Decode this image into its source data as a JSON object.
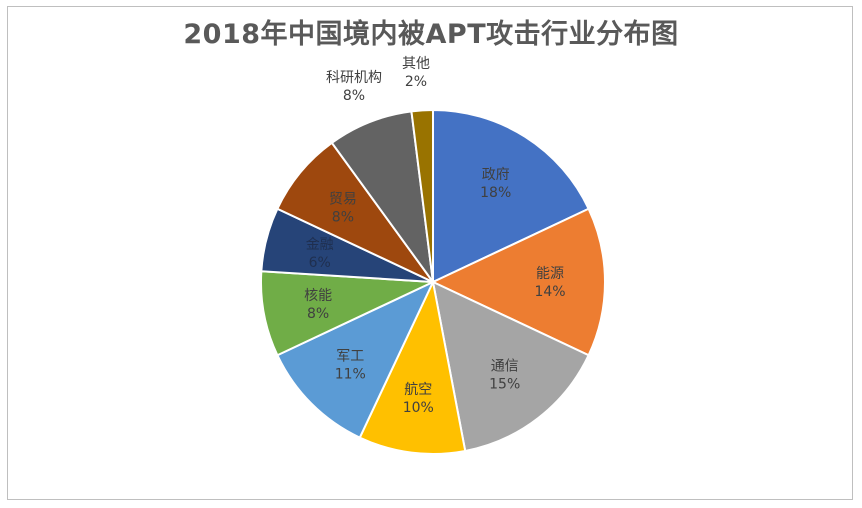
{
  "chart_data": {
    "type": "pie",
    "title": "2018年中国境内被APT攻击行业分布图",
    "start_angle_deg": 0,
    "direction": "clockwise",
    "slices": [
      {
        "label": "政府",
        "value": 18,
        "percent_label": "18%",
        "color": "#4472C4",
        "label_color": "#404040",
        "label_inside": true
      },
      {
        "label": "能源",
        "value": 14,
        "percent_label": "14%",
        "color": "#ED7D31",
        "label_color": "#404040",
        "label_inside": true
      },
      {
        "label": "通信",
        "value": 15,
        "percent_label": "15%",
        "color": "#A5A5A5",
        "label_color": "#404040",
        "label_inside": true
      },
      {
        "label": "航空",
        "value": 10,
        "percent_label": "10%",
        "color": "#FFC000",
        "label_color": "#404040",
        "label_inside": true
      },
      {
        "label": "军工",
        "value": 11,
        "percent_label": "11%",
        "color": "#5B9BD5",
        "label_color": "#404040",
        "label_inside": true
      },
      {
        "label": "核能",
        "value": 8,
        "percent_label": "8%",
        "color": "#70AD47",
        "label_color": "#404040",
        "label_inside": true
      },
      {
        "label": "金融",
        "value": 6,
        "percent_label": "6%",
        "color": "#264478",
        "label_color": "#1f2f4f",
        "label_inside": true
      },
      {
        "label": "贸易",
        "value": 8,
        "percent_label": "8%",
        "color": "#9E480E",
        "label_color": "#404040",
        "label_inside": true
      },
      {
        "label": "科研机构",
        "value": 8,
        "percent_label": "8%",
        "color": "#636363",
        "label_color": "#404040",
        "label_inside": false
      },
      {
        "label": "其他",
        "value": 2,
        "percent_label": "2%",
        "color": "#997300",
        "label_color": "#404040",
        "label_inside": false
      }
    ],
    "legend": "none"
  }
}
